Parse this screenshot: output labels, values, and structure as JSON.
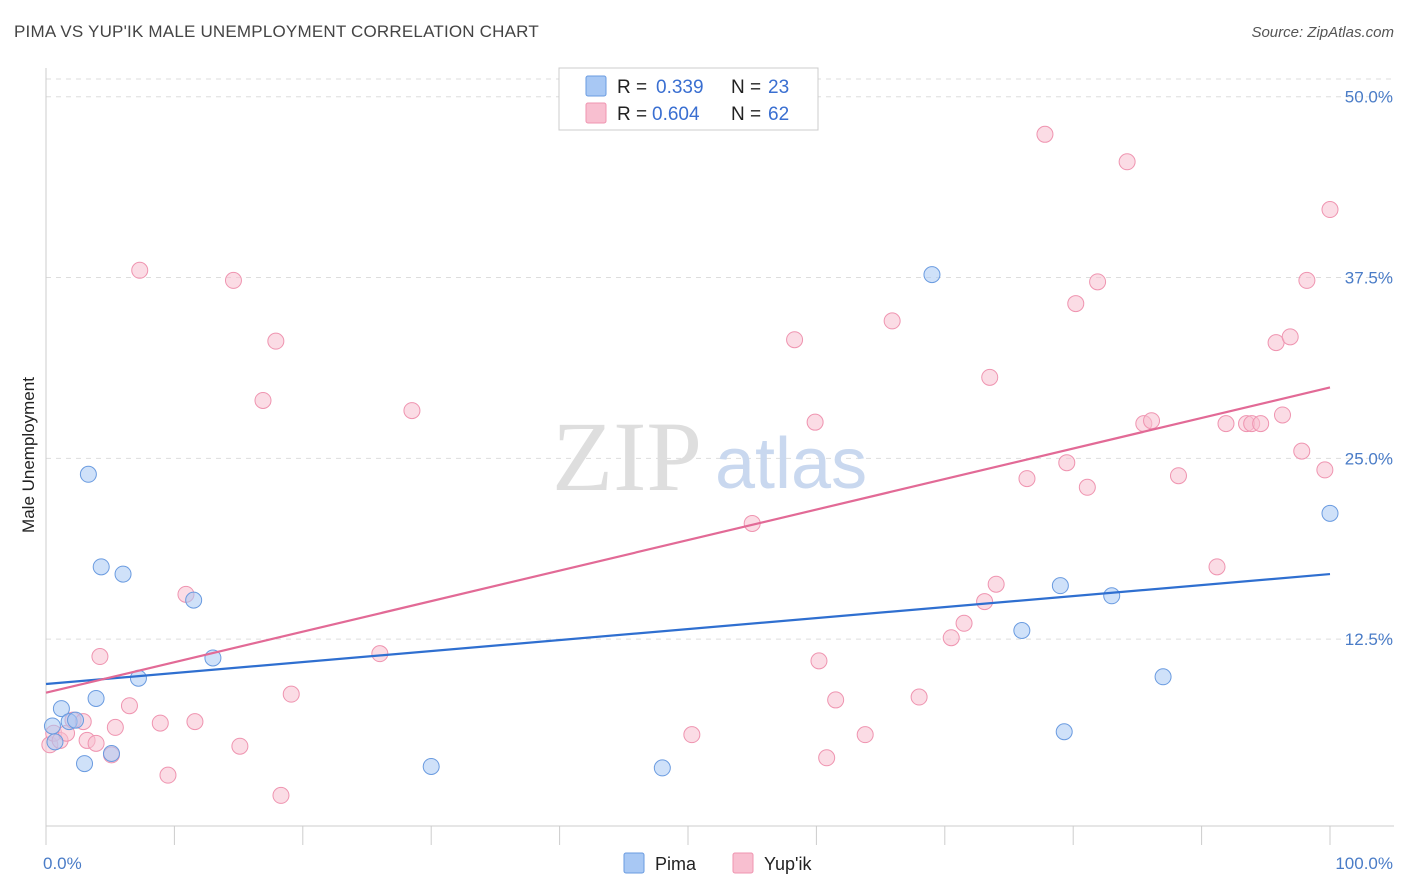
{
  "header": {
    "title": "PIMA VS YUP'IK MALE UNEMPLOYMENT CORRELATION CHART",
    "source": "Source: ZipAtlas.com"
  },
  "legend": {
    "rows": [
      {
        "r_label": "R =",
        "r_value": "0.339",
        "n_label": "N =",
        "n_value": "23"
      },
      {
        "r_label": "R =",
        "r_value": "0.604",
        "n_label": "N =",
        "n_value": "62"
      }
    ]
  },
  "bottom_legend": {
    "items": [
      "Pima",
      "Yup'ik"
    ]
  },
  "watermark": {
    "zip": "ZIP",
    "atlas": "atlas"
  },
  "colors": {
    "pima_fill": "#a8c8f4",
    "pima_stroke": "#6a9be0",
    "pima_line": "#2f6fd0",
    "yupik_fill": "#f8bfd0",
    "yupik_stroke": "#ef94b0",
    "yupik_line": "#e26a96",
    "tick_label": "#4a7cc7",
    "grid": "#dddddd"
  },
  "chart_data": {
    "type": "scatter",
    "title": "PIMA VS YUP'IK MALE UNEMPLOYMENT CORRELATION CHART",
    "xlabel": "",
    "ylabel": "Male Unemployment",
    "xlim": [
      0,
      100
    ],
    "ylim": [
      0,
      51.5
    ],
    "x_tick_labels": [
      "0.0%",
      "100.0%"
    ],
    "y_ticks": [
      12.5,
      25.0,
      37.5,
      50.0
    ],
    "y_tick_labels": [
      "12.5%",
      "25.0%",
      "37.5%",
      "50.0%"
    ],
    "grid": true,
    "legend_position": "top-center",
    "series": [
      {
        "name": "Pima",
        "R": 0.339,
        "N": 23,
        "trend": {
          "x": [
            0,
            100
          ],
          "y": [
            9.4,
            17.0
          ]
        },
        "points": [
          {
            "x": 0.5,
            "y": 6.5
          },
          {
            "x": 0.7,
            "y": 5.4
          },
          {
            "x": 1.2,
            "y": 7.7
          },
          {
            "x": 1.8,
            "y": 6.8
          },
          {
            "x": 2.3,
            "y": 6.9
          },
          {
            "x": 3.0,
            "y": 3.9
          },
          {
            "x": 3.3,
            "y": 23.9
          },
          {
            "x": 3.9,
            "y": 8.4
          },
          {
            "x": 4.3,
            "y": 17.5
          },
          {
            "x": 5.1,
            "y": 4.6
          },
          {
            "x": 6.0,
            "y": 17.0
          },
          {
            "x": 7.2,
            "y": 9.8
          },
          {
            "x": 11.5,
            "y": 15.2
          },
          {
            "x": 13.0,
            "y": 11.2
          },
          {
            "x": 30.0,
            "y": 3.7
          },
          {
            "x": 48.0,
            "y": 3.6
          },
          {
            "x": 69.0,
            "y": 37.7
          },
          {
            "x": 76.0,
            "y": 13.1
          },
          {
            "x": 79.0,
            "y": 16.2
          },
          {
            "x": 79.3,
            "y": 6.1
          },
          {
            "x": 83.0,
            "y": 15.5
          },
          {
            "x": 87.0,
            "y": 9.9
          },
          {
            "x": 100.0,
            "y": 21.2
          }
        ]
      },
      {
        "name": "Yup'ik",
        "R": 0.604,
        "N": 62,
        "trend": {
          "x": [
            0,
            100
          ],
          "y": [
            8.8,
            29.9
          ]
        },
        "points": [
          {
            "x": 0.3,
            "y": 5.2
          },
          {
            "x": 0.6,
            "y": 6.0
          },
          {
            "x": 1.1,
            "y": 5.5
          },
          {
            "x": 1.6,
            "y": 6.0
          },
          {
            "x": 2.1,
            "y": 6.9
          },
          {
            "x": 2.9,
            "y": 6.8
          },
          {
            "x": 3.2,
            "y": 5.5
          },
          {
            "x": 3.9,
            "y": 5.3
          },
          {
            "x": 4.2,
            "y": 11.3
          },
          {
            "x": 5.1,
            "y": 4.5
          },
          {
            "x": 5.4,
            "y": 6.4
          },
          {
            "x": 6.5,
            "y": 7.9
          },
          {
            "x": 7.3,
            "y": 38.0
          },
          {
            "x": 8.9,
            "y": 6.7
          },
          {
            "x": 9.5,
            "y": 3.1
          },
          {
            "x": 10.9,
            "y": 15.6
          },
          {
            "x": 11.6,
            "y": 6.8
          },
          {
            "x": 14.6,
            "y": 37.3
          },
          {
            "x": 15.1,
            "y": 5.1
          },
          {
            "x": 16.9,
            "y": 29.0
          },
          {
            "x": 17.9,
            "y": 33.1
          },
          {
            "x": 18.3,
            "y": 1.7
          },
          {
            "x": 19.1,
            "y": 8.7
          },
          {
            "x": 26.0,
            "y": 11.5
          },
          {
            "x": 28.5,
            "y": 28.3
          },
          {
            "x": 50.3,
            "y": 5.9
          },
          {
            "x": 55.0,
            "y": 20.5
          },
          {
            "x": 58.3,
            "y": 33.2
          },
          {
            "x": 59.9,
            "y": 27.5
          },
          {
            "x": 60.2,
            "y": 11.0
          },
          {
            "x": 60.8,
            "y": 4.3
          },
          {
            "x": 61.5,
            "y": 8.3
          },
          {
            "x": 63.8,
            "y": 5.9
          },
          {
            "x": 65.9,
            "y": 34.5
          },
          {
            "x": 68.0,
            "y": 8.5
          },
          {
            "x": 70.5,
            "y": 12.6
          },
          {
            "x": 71.5,
            "y": 13.6
          },
          {
            "x": 73.1,
            "y": 15.1
          },
          {
            "x": 73.5,
            "y": 30.6
          },
          {
            "x": 74.0,
            "y": 16.3
          },
          {
            "x": 76.4,
            "y": 23.6
          },
          {
            "x": 77.8,
            "y": 47.4
          },
          {
            "x": 79.5,
            "y": 24.7
          },
          {
            "x": 80.2,
            "y": 35.7
          },
          {
            "x": 81.1,
            "y": 23.0
          },
          {
            "x": 81.9,
            "y": 37.2
          },
          {
            "x": 84.2,
            "y": 45.5
          },
          {
            "x": 85.5,
            "y": 27.4
          },
          {
            "x": 86.1,
            "y": 27.6
          },
          {
            "x": 88.2,
            "y": 23.8
          },
          {
            "x": 91.2,
            "y": 17.5
          },
          {
            "x": 91.9,
            "y": 27.4
          },
          {
            "x": 93.5,
            "y": 27.4
          },
          {
            "x": 93.9,
            "y": 27.4
          },
          {
            "x": 94.6,
            "y": 27.4
          },
          {
            "x": 95.8,
            "y": 33.0
          },
          {
            "x": 96.3,
            "y": 28.0
          },
          {
            "x": 96.9,
            "y": 33.4
          },
          {
            "x": 97.8,
            "y": 25.5
          },
          {
            "x": 98.2,
            "y": 37.3
          },
          {
            "x": 99.6,
            "y": 24.2
          },
          {
            "x": 100.0,
            "y": 42.2
          }
        ]
      }
    ]
  }
}
